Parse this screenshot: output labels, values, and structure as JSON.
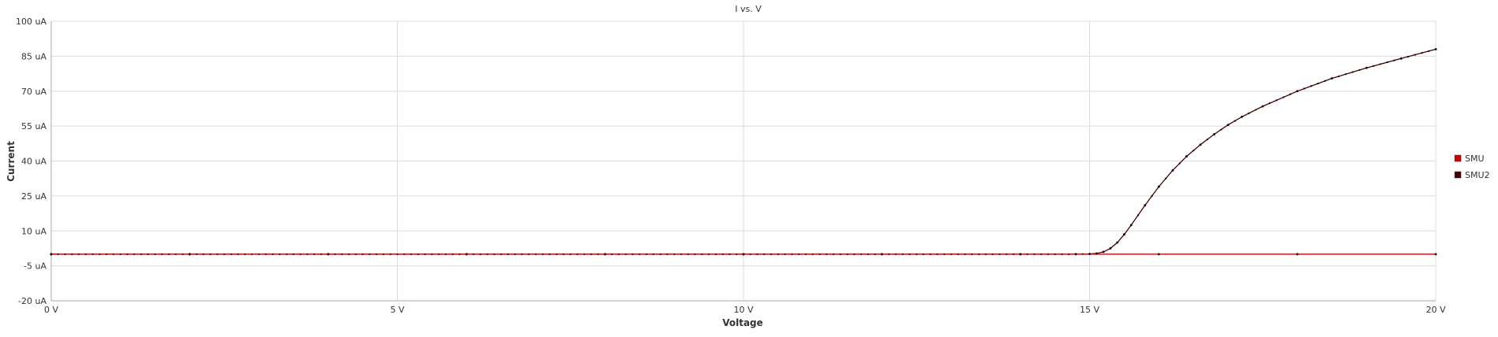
{
  "chart_data": {
    "type": "line",
    "title": "I vs. V",
    "xlabel": "Voltage",
    "ylabel": "Current",
    "x_unit": "V",
    "y_unit": "uA",
    "xlim": [
      0,
      20
    ],
    "ylim": [
      -20,
      100
    ],
    "x_ticks": [
      0,
      5,
      10,
      15,
      20
    ],
    "y_ticks": [
      -20,
      -5,
      10,
      25,
      40,
      55,
      70,
      85,
      100
    ],
    "x_tick_labels": [
      "0 V",
      "5 V",
      "10 V",
      "15 V",
      "20 V"
    ],
    "y_tick_labels": [
      "-20 uA",
      "-5 uA",
      "10 uA",
      "25 uA",
      "40 uA",
      "55 uA",
      "70 uA",
      "85 uA",
      "100 uA"
    ],
    "grid": true,
    "legend_position": "right",
    "series": [
      {
        "name": "SMU",
        "color": "#d40000",
        "x": [
          0,
          2,
          4,
          6,
          8,
          10,
          12,
          14,
          16,
          18,
          20
        ],
        "y": [
          0,
          0,
          0,
          0,
          0,
          0,
          0,
          0,
          0,
          0,
          0
        ]
      },
      {
        "name": "SMU2",
        "color": "#4a0000",
        "x": [
          0,
          2,
          4,
          6,
          8,
          10,
          12,
          14,
          14.8,
          15,
          15.1,
          15.2,
          15.3,
          15.4,
          15.5,
          15.6,
          15.8,
          16.0,
          16.2,
          16.4,
          16.6,
          16.8,
          17.0,
          17.2,
          17.5,
          18.0,
          18.5,
          19.0,
          19.5,
          20.0
        ],
        "y": [
          0,
          0,
          0,
          0,
          0,
          0,
          0,
          0,
          0,
          0.1,
          0.3,
          1.0,
          2.5,
          5.0,
          8.5,
          12.5,
          21.0,
          29.0,
          36.0,
          42.0,
          47.0,
          51.5,
          55.5,
          59.0,
          63.5,
          70.0,
          75.5,
          80.0,
          84.0,
          88.0
        ]
      }
    ]
  }
}
